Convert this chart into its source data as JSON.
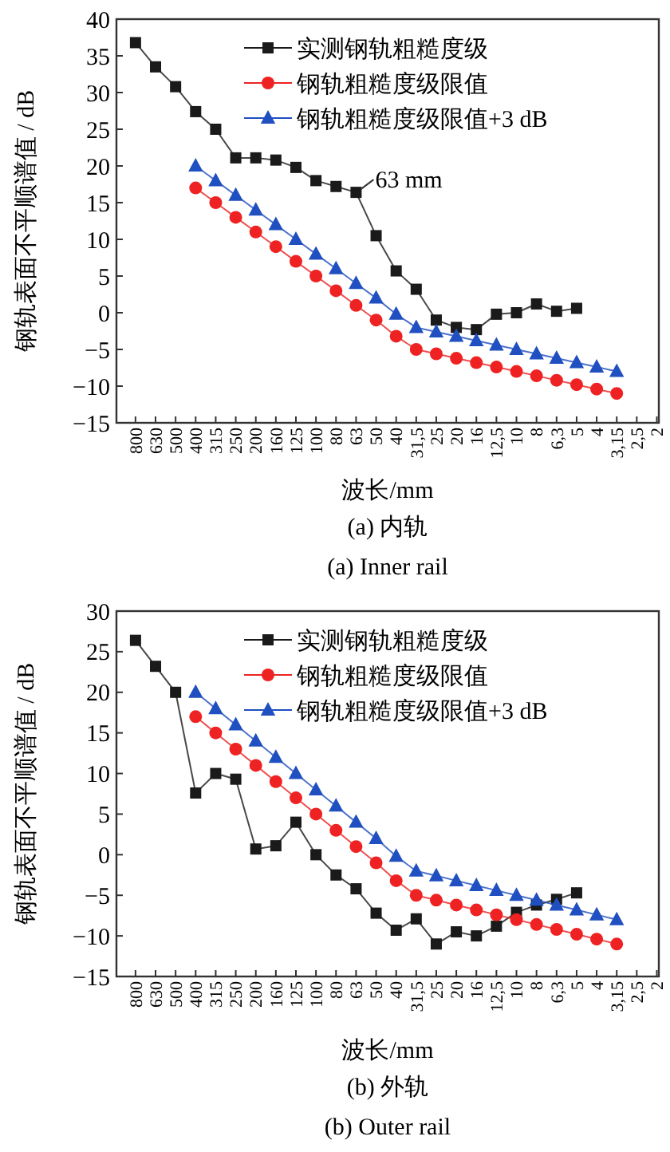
{
  "chart_data": [
    {
      "type": "line",
      "xlabel": "波长/mm",
      "ylabel": "钢轨表面不平顺谱值 / dB",
      "categories": [
        "800",
        "630",
        "500",
        "400",
        "315",
        "250",
        "200",
        "160",
        "125",
        "100",
        "80",
        "63",
        "50",
        "40",
        "31,5",
        "25",
        "20",
        "16",
        "12,5",
        "10",
        "8",
        "6,3",
        "5",
        "4",
        "3,15",
        "2,5",
        "2"
      ],
      "ylim": [
        -15,
        40
      ],
      "yticks": [
        -15,
        -10,
        -5,
        0,
        5,
        10,
        15,
        20,
        25,
        30,
        35,
        40
      ],
      "grid": false,
      "legend": "top right",
      "line_style": "solid",
      "series": [
        {
          "name": "实测钢轨粗糙度级",
          "color": "#1a1a1a",
          "marker": "square",
          "values": [
            36.8,
            33.5,
            30.8,
            27.4,
            25,
            21.1,
            21.1,
            20.8,
            19.8,
            18,
            17.2,
            16.4,
            10.5,
            5.7,
            3.2,
            -1,
            -2,
            -2.3,
            -0.2,
            0,
            1.2,
            0.2,
            0.6,
            null,
            null,
            null,
            null
          ]
        },
        {
          "name": "钢轨粗糙度级限值",
          "color": "#ee2222",
          "marker": "circle",
          "values": [
            null,
            null,
            null,
            17,
            15,
            13,
            11,
            9,
            7,
            5,
            3,
            1,
            -1,
            -3.2,
            -5,
            -5.6,
            -6.2,
            -6.8,
            -7.4,
            -8,
            -8.6,
            -9.2,
            -9.8,
            -10.4,
            -11,
            null,
            null
          ]
        },
        {
          "name": "钢轨粗糙度级限值+3 dB",
          "color": "#1f4fc0",
          "marker": "triangle",
          "values": [
            null,
            null,
            null,
            20,
            18,
            16,
            14,
            12,
            10,
            8,
            6,
            4,
            2,
            -0.2,
            -2,
            -2.6,
            -3.2,
            -3.8,
            -4.4,
            -5,
            -5.6,
            -6.2,
            -6.8,
            -7.4,
            -8,
            null,
            null
          ]
        }
      ],
      "annotations": [
        {
          "text": "63 mm",
          "x": "63",
          "y": 16.4
        },
        "(a)  内轨",
        "(a)  Inner rail"
      ]
    },
    {
      "type": "line",
      "xlabel": "波长/mm",
      "ylabel": "钢轨表面不平顺谱值 / dB",
      "categories": [
        "800",
        "630",
        "500",
        "400",
        "315",
        "250",
        "200",
        "160",
        "125",
        "100",
        "80",
        "63",
        "50",
        "40",
        "31,5",
        "25",
        "20",
        "16",
        "12,5",
        "10",
        "8",
        "6,3",
        "5",
        "4",
        "3,15",
        "2,5",
        "2"
      ],
      "ylim": [
        -15,
        30
      ],
      "yticks": [
        -15,
        -10,
        -5,
        0,
        5,
        10,
        15,
        20,
        25,
        30
      ],
      "grid": false,
      "legend": "top right",
      "line_style": "solid",
      "series": [
        {
          "name": "实测钢轨粗糙度级",
          "color": "#1a1a1a",
          "marker": "square",
          "values": [
            26.4,
            23.2,
            20,
            7.6,
            10,
            9.3,
            0.7,
            1.1,
            4,
            0,
            -2.5,
            -4.2,
            -7.2,
            -9.3,
            -7.9,
            -11,
            -9.5,
            -10,
            -8.8,
            -7.1,
            -6.2,
            -5.5,
            -4.7,
            null,
            null,
            null,
            null
          ]
        },
        {
          "name": "钢轨粗糙度级限值",
          "color": "#ee2222",
          "marker": "circle",
          "values": [
            null,
            null,
            null,
            17,
            15,
            13,
            11,
            9,
            7,
            5,
            3,
            1,
            -1,
            -3.2,
            -5,
            -5.6,
            -6.2,
            -6.8,
            -7.4,
            -8,
            -8.6,
            -9.2,
            -9.8,
            -10.4,
            -11,
            null,
            null
          ]
        },
        {
          "name": "钢轨粗糙度级限值+3 dB",
          "color": "#1f4fc0",
          "marker": "triangle",
          "values": [
            null,
            null,
            null,
            20,
            18,
            16,
            14,
            12,
            10,
            8,
            6,
            4,
            2,
            -0.2,
            -2,
            -2.6,
            -3.2,
            -3.8,
            -4.4,
            -5,
            -5.6,
            -6.2,
            -6.8,
            -7.4,
            -8,
            null,
            null
          ]
        }
      ],
      "annotations": [
        "(b)  外轨",
        "(b)  Outer rail"
      ]
    }
  ]
}
